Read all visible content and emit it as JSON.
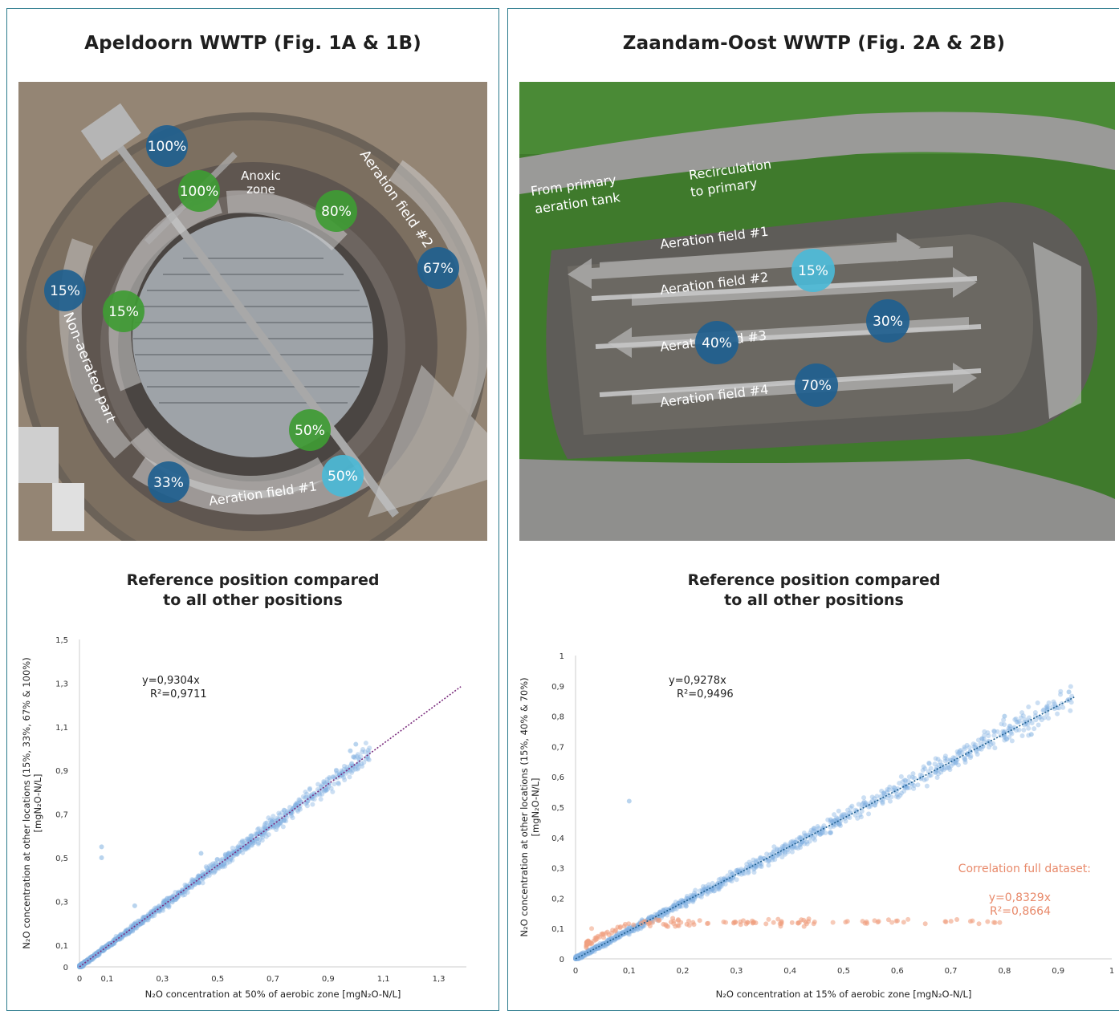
{
  "left": {
    "title": "Apeldoorn WWTP (Fig. 1A & 1B)",
    "photo_labels": {
      "anoxic_line1": "Anoxic",
      "anoxic_line2": "zone",
      "aeration_field_2": "Aeration field #2",
      "aeration_field_1": "Aeration field #1",
      "non_aerated": "Non-aerated part"
    },
    "markers": [
      {
        "label": "100%",
        "color": "#1f5f8f"
      },
      {
        "label": "100%",
        "color": "#3f9b34"
      },
      {
        "label": "80%",
        "color": "#3f9b34"
      },
      {
        "label": "67%",
        "color": "#1f5f8f"
      },
      {
        "label": "15%",
        "color": "#1f5f8f"
      },
      {
        "label": "15%",
        "color": "#3f9b34"
      },
      {
        "label": "50%",
        "color": "#3f9b34"
      },
      {
        "label": "33%",
        "color": "#1f5f8f"
      },
      {
        "label": "50%",
        "color": "#4bb8d6"
      }
    ],
    "chart_title_line1": "Reference position compared",
    "chart_title_line2": "to all other positions"
  },
  "right": {
    "title": "Zaandam-Oost WWTP (Fig. 2A & 2B)",
    "photo_labels": {
      "from_primary_line1": "From primary",
      "from_primary_line2": "aeration tank",
      "recirc_line1": "Recirculation",
      "recirc_line2": "to primary",
      "field1": "Aeration field #1",
      "field2": "Aeration field #2",
      "field3a": "Aerat",
      "field3b": "d #3",
      "field4": "Aeration field #4"
    },
    "markers": [
      {
        "label": "15%",
        "color": "#4bb8d6"
      },
      {
        "label": "30%",
        "color": "#1f5f8f"
      },
      {
        "label": "40%",
        "color": "#1f5f8f"
      },
      {
        "label": "70%",
        "color": "#1f5f8f"
      }
    ],
    "chart_title_line1": "Reference position compared",
    "chart_title_line2": "to all other positions"
  },
  "chart_data": [
    {
      "type": "scatter",
      "title": "Reference position compared to all other positions",
      "xlabel": "N₂O concentration at 50% of aerobic zone [mgN₂O-N/L]",
      "ylabel_line1": "N₂O concentration at other locations (15%, 33%, 67% & 100%)",
      "ylabel_line2": "[mgN₂O-N/L]",
      "xlim": [
        0,
        1.4
      ],
      "ylim": [
        0,
        1.5
      ],
      "x_ticks": [
        "0",
        "0,1",
        "0,3",
        "0,5",
        "0,7",
        "0,9",
        "1,1",
        "1,3"
      ],
      "x_tick_values": [
        0,
        0.1,
        0.3,
        0.5,
        0.7,
        0.9,
        1.1,
        1.3
      ],
      "y_ticks": [
        "0",
        "0,1",
        "0,3",
        "0,5",
        "0,7",
        "0,9",
        "1,1",
        "1,3",
        "1,5"
      ],
      "y_tick_values": [
        0,
        0.1,
        0.3,
        0.5,
        0.7,
        0.9,
        1.1,
        1.3,
        1.5
      ],
      "equation": "y=0,9304x",
      "r2": "R²=0,9711",
      "trend_slope": 0.9304,
      "trend_color": "#7b2d7e",
      "series": [
        {
          "color": "#7fb0e0",
          "slope": 0.9304,
          "x_range": [
            0,
            1.05
          ],
          "sample_points": [
            [
              0.08,
              0.55
            ],
            [
              0.08,
              0.5
            ],
            [
              0.44,
              0.52
            ],
            [
              0.98,
              0.99
            ],
            [
              1.0,
              1.02
            ],
            [
              0.2,
              0.28
            ],
            [
              0.62,
              0.6
            ]
          ]
        }
      ]
    },
    {
      "type": "scatter",
      "title": "Reference position compared to all other positions",
      "xlabel": "N₂O concentration at 15% of aerobic zone [mgN₂O-N/L]",
      "ylabel_line1": "N₂O concentration at other locations (15%, 40% & 70%)",
      "ylabel_line2": "[mgN₂O-N/L]",
      "xlim": [
        0,
        1
      ],
      "ylim": [
        0,
        1
      ],
      "x_ticks": [
        "0",
        "0,1",
        "0,2",
        "0,3",
        "0,4",
        "0,5",
        "0,6",
        "0,7",
        "0,8",
        "0,9",
        "1"
      ],
      "x_tick_values": [
        0,
        0.1,
        0.2,
        0.3,
        0.4,
        0.5,
        0.6,
        0.7,
        0.8,
        0.9,
        1
      ],
      "y_ticks": [
        "0",
        "0,1",
        "0,2",
        "0,3",
        "0,4",
        "0,5",
        "0,6",
        "0,7",
        "0,8",
        "0,9",
        "1"
      ],
      "y_tick_values": [
        0,
        0.1,
        0.2,
        0.3,
        0.4,
        0.5,
        0.6,
        0.7,
        0.8,
        0.9,
        1
      ],
      "equation": "y=0,9278x",
      "r2": "R²=0,9496",
      "trend_slope": 0.9278,
      "trend_color": "#1f5f8f",
      "annotation": {
        "title": "Correlation full dataset:",
        "equation": "y=0,8329x",
        "r2": "R²=0,8664",
        "color": "#e8896a"
      },
      "series": [
        {
          "color": "#7fb0e0",
          "slope": 0.9278,
          "x_range": [
            0,
            0.93
          ],
          "sample_points": [
            [
              0.1,
              0.52
            ],
            [
              0.8,
              0.8
            ],
            [
              0.92,
              0.88
            ],
            [
              0.88,
              0.82
            ],
            [
              0.85,
              0.74
            ]
          ]
        },
        {
          "color": "#f0a080",
          "x_range": [
            0.02,
            0.8
          ],
          "y_approx": 0.12,
          "sample_points": [
            [
              0.03,
              0.1
            ],
            [
              0.15,
              0.13
            ],
            [
              0.28,
              0.12
            ],
            [
              0.36,
              0.13
            ],
            [
              0.48,
              0.12
            ],
            [
              0.59,
              0.12
            ],
            [
              0.78,
              0.12
            ],
            [
              0.62,
              0.13
            ]
          ]
        }
      ]
    }
  ]
}
